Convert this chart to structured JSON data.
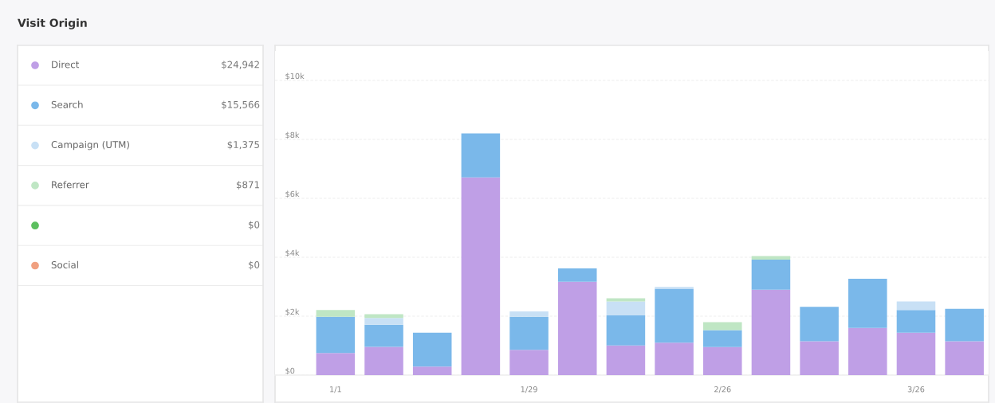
{
  "chart_data": {
    "type": "bar",
    "title": "Visit Origin",
    "stacked": true,
    "categories": [
      "1/1",
      null,
      null,
      null,
      "1/29",
      null,
      null,
      null,
      "2/26",
      null,
      null,
      null,
      "3/26",
      null
    ],
    "series": [
      {
        "name": "Direct",
        "color": "#bf9fe6",
        "values": [
          0.75,
          0.96,
          0.29,
          6.71,
          0.86,
          3.17,
          1.01,
          1.1,
          0.95,
          2.9,
          1.15,
          1.6,
          1.44,
          1.15
        ]
      },
      {
        "name": "Search",
        "color": "#7ab8ea",
        "values": [
          1.23,
          0.75,
          1.15,
          1.49,
          1.12,
          0.45,
          1.02,
          1.83,
          0.58,
          1.02,
          1.17,
          1.67,
          0.77,
          1.1
        ]
      },
      {
        "name": "Campaign (UTM)",
        "color": "#c8e0f5",
        "values": [
          0,
          0.23,
          0,
          0,
          0.18,
          0,
          0.47,
          0.06,
          0,
          0,
          0,
          0,
          0.29,
          0
        ]
      },
      {
        "name": "Referrer",
        "color": "#bfe6c4",
        "values": [
          0.23,
          0.13,
          0,
          0,
          0,
          0,
          0.11,
          0,
          0.27,
          0.12,
          0,
          0,
          0,
          0
        ]
      },
      {
        "color": "#5cbf5f",
        "values": [
          0,
          0,
          0,
          0,
          0,
          0,
          0,
          0,
          0,
          0,
          0,
          0,
          0,
          0
        ]
      },
      {
        "name": "Social",
        "color": "#f0a080",
        "values": [
          0,
          0,
          0,
          0,
          0,
          0,
          0,
          0,
          0,
          0,
          0,
          0,
          0,
          0
        ]
      }
    ],
    "annotations": [
      "$24,942",
      "$15,566",
      "$1,375",
      "$871",
      "$0",
      "$0"
    ],
    "ylim": [
      0,
      11
    ],
    "yticks": [
      {
        "value": 0,
        "label": "$0"
      },
      {
        "value": 2,
        "label": "$2k"
      },
      {
        "value": 4,
        "label": "$4k"
      },
      {
        "value": 6,
        "label": "$6k"
      },
      {
        "value": 8,
        "label": "$8k"
      },
      {
        "value": 10,
        "label": "$10k"
      }
    ],
    "grid": "y",
    "legend": "left"
  }
}
